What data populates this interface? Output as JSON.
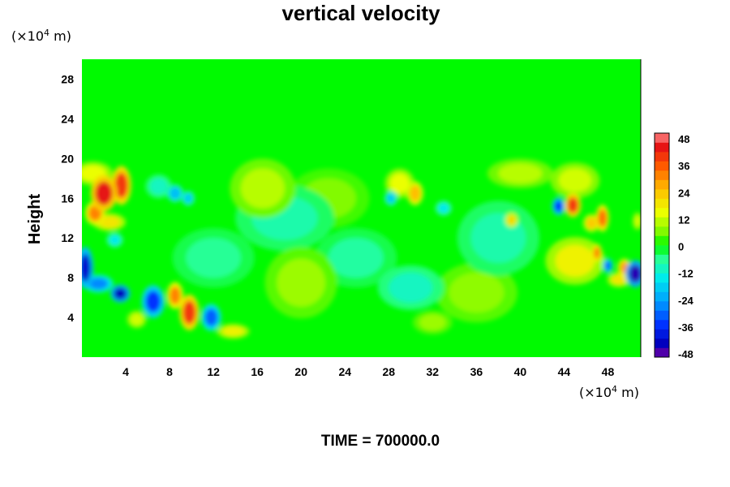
{
  "chart_data": {
    "type": "heatmap",
    "title": "vertical velocity",
    "ylabel": "Height",
    "xlabel": "",
    "x_unit": {
      "prefix": "(×10",
      "exp": "4",
      "suffix": " m)"
    },
    "y_unit": {
      "prefix": "(×10",
      "exp": "4",
      "suffix": " m)"
    },
    "xlim": [
      0,
      51
    ],
    "ylim": [
      0,
      30
    ],
    "x_ticks": [
      "4",
      "8",
      "12",
      "16",
      "20",
      "24",
      "28",
      "32",
      "36",
      "40",
      "44",
      "48"
    ],
    "y_ticks": [
      "4",
      "8",
      "12",
      "16",
      "20",
      "24",
      "28"
    ],
    "colorbar": {
      "min": -48,
      "max": 48,
      "step": 4,
      "tick_labels": [
        "48",
        "36",
        "24",
        "12",
        "0",
        "-12",
        "-24",
        "-36",
        "-48"
      ]
    },
    "background_value": 0,
    "features": [
      {
        "x": 2.0,
        "y": 16.5,
        "value": 42,
        "rx": 0.8,
        "ry": 1.2
      },
      {
        "x": 3.6,
        "y": 17.3,
        "value": 38,
        "rx": 0.6,
        "ry": 1.3
      },
      {
        "x": 1.2,
        "y": 14.5,
        "value": 30,
        "rx": 0.6,
        "ry": 0.8
      },
      {
        "x": 2.5,
        "y": 13.6,
        "value": 18,
        "rx": 1.0,
        "ry": 0.6
      },
      {
        "x": 1.0,
        "y": 18.5,
        "value": 14,
        "rx": 1.2,
        "ry": 0.8
      },
      {
        "x": 3.0,
        "y": 11.8,
        "value": -14,
        "rx": 0.5,
        "ry": 0.5
      },
      {
        "x": 7.0,
        "y": 17.2,
        "value": -10,
        "rx": 0.8,
        "ry": 0.8
      },
      {
        "x": 8.5,
        "y": 16.5,
        "value": -20,
        "rx": 0.5,
        "ry": 0.6
      },
      {
        "x": 9.7,
        "y": 16.0,
        "value": -18,
        "rx": 0.4,
        "ry": 0.5
      },
      {
        "x": 0.3,
        "y": 9.0,
        "value": -40,
        "rx": 0.5,
        "ry": 1.4
      },
      {
        "x": 1.5,
        "y": 7.4,
        "value": -26,
        "rx": 0.9,
        "ry": 0.6
      },
      {
        "x": 3.5,
        "y": 6.4,
        "value": -42,
        "rx": 0.6,
        "ry": 0.6
      },
      {
        "x": 6.5,
        "y": 5.6,
        "value": -34,
        "rx": 0.7,
        "ry": 1.1
      },
      {
        "x": 8.5,
        "y": 6.2,
        "value": 30,
        "rx": 0.5,
        "ry": 0.9
      },
      {
        "x": 9.8,
        "y": 4.5,
        "value": 38,
        "rx": 0.6,
        "ry": 1.2
      },
      {
        "x": 11.8,
        "y": 4.0,
        "value": -30,
        "rx": 0.6,
        "ry": 0.9
      },
      {
        "x": 13.8,
        "y": 2.6,
        "value": 16,
        "rx": 1.0,
        "ry": 0.5
      },
      {
        "x": 5.0,
        "y": 3.8,
        "value": 12,
        "rx": 0.6,
        "ry": 0.6
      },
      {
        "x": 16.5,
        "y": 17.0,
        "value": 10,
        "rx": 2.0,
        "ry": 2.0
      },
      {
        "x": 18.5,
        "y": 14.0,
        "value": -8,
        "rx": 3.0,
        "ry": 2.2
      },
      {
        "x": 20.0,
        "y": 7.5,
        "value": 8,
        "rx": 2.2,
        "ry": 2.4
      },
      {
        "x": 25.0,
        "y": 10.0,
        "value": -7,
        "rx": 2.5,
        "ry": 2.0
      },
      {
        "x": 29.0,
        "y": 17.5,
        "value": 14,
        "rx": 0.9,
        "ry": 1.0
      },
      {
        "x": 30.4,
        "y": 16.5,
        "value": 24,
        "rx": 0.5,
        "ry": 0.8
      },
      {
        "x": 28.2,
        "y": 16.0,
        "value": -18,
        "rx": 0.4,
        "ry": 0.5
      },
      {
        "x": 33.0,
        "y": 15.0,
        "value": -14,
        "rx": 0.5,
        "ry": 0.5
      },
      {
        "x": 30.0,
        "y": 7.0,
        "value": -10,
        "rx": 2.0,
        "ry": 1.5
      },
      {
        "x": 32.0,
        "y": 3.5,
        "value": 8,
        "rx": 1.2,
        "ry": 0.8
      },
      {
        "x": 38.0,
        "y": 12.0,
        "value": -8,
        "rx": 2.5,
        "ry": 2.5
      },
      {
        "x": 39.2,
        "y": 13.8,
        "value": 20,
        "rx": 0.4,
        "ry": 0.5
      },
      {
        "x": 43.5,
        "y": 15.2,
        "value": -34,
        "rx": 0.4,
        "ry": 0.6
      },
      {
        "x": 44.8,
        "y": 15.3,
        "value": 38,
        "rx": 0.5,
        "ry": 0.8
      },
      {
        "x": 45.0,
        "y": 9.7,
        "value": 16,
        "rx": 1.8,
        "ry": 1.6
      },
      {
        "x": 46.5,
        "y": 13.5,
        "value": 22,
        "rx": 0.5,
        "ry": 0.6
      },
      {
        "x": 47.5,
        "y": 14.0,
        "value": 32,
        "rx": 0.4,
        "ry": 0.9
      },
      {
        "x": 47.0,
        "y": 10.5,
        "value": 30,
        "rx": 0.3,
        "ry": 0.6
      },
      {
        "x": 48.0,
        "y": 9.2,
        "value": -30,
        "rx": 0.3,
        "ry": 0.5
      },
      {
        "x": 49.5,
        "y": 9.0,
        "value": 28,
        "rx": 0.4,
        "ry": 0.6
      },
      {
        "x": 50.5,
        "y": 8.4,
        "value": -44,
        "rx": 0.6,
        "ry": 0.9
      },
      {
        "x": 49.0,
        "y": 7.8,
        "value": 18,
        "rx": 0.7,
        "ry": 0.5
      },
      {
        "x": 50.7,
        "y": 13.7,
        "value": 12,
        "rx": 0.3,
        "ry": 0.6
      },
      {
        "x": 40.0,
        "y": 18.5,
        "value": 10,
        "rx": 2.0,
        "ry": 1.0
      },
      {
        "x": 45.0,
        "y": 17.8,
        "value": 12,
        "rx": 1.5,
        "ry": 1.2
      },
      {
        "x": 36.0,
        "y": 6.5,
        "value": 7,
        "rx": 2.5,
        "ry": 2.0
      },
      {
        "x": 22.5,
        "y": 16.0,
        "value": 6,
        "rx": 2.5,
        "ry": 2.0
      },
      {
        "x": 12.0,
        "y": 10.0,
        "value": -6,
        "rx": 2.5,
        "ry": 2.0
      }
    ]
  },
  "footer": {
    "time_label": "TIME = 700000.0"
  }
}
